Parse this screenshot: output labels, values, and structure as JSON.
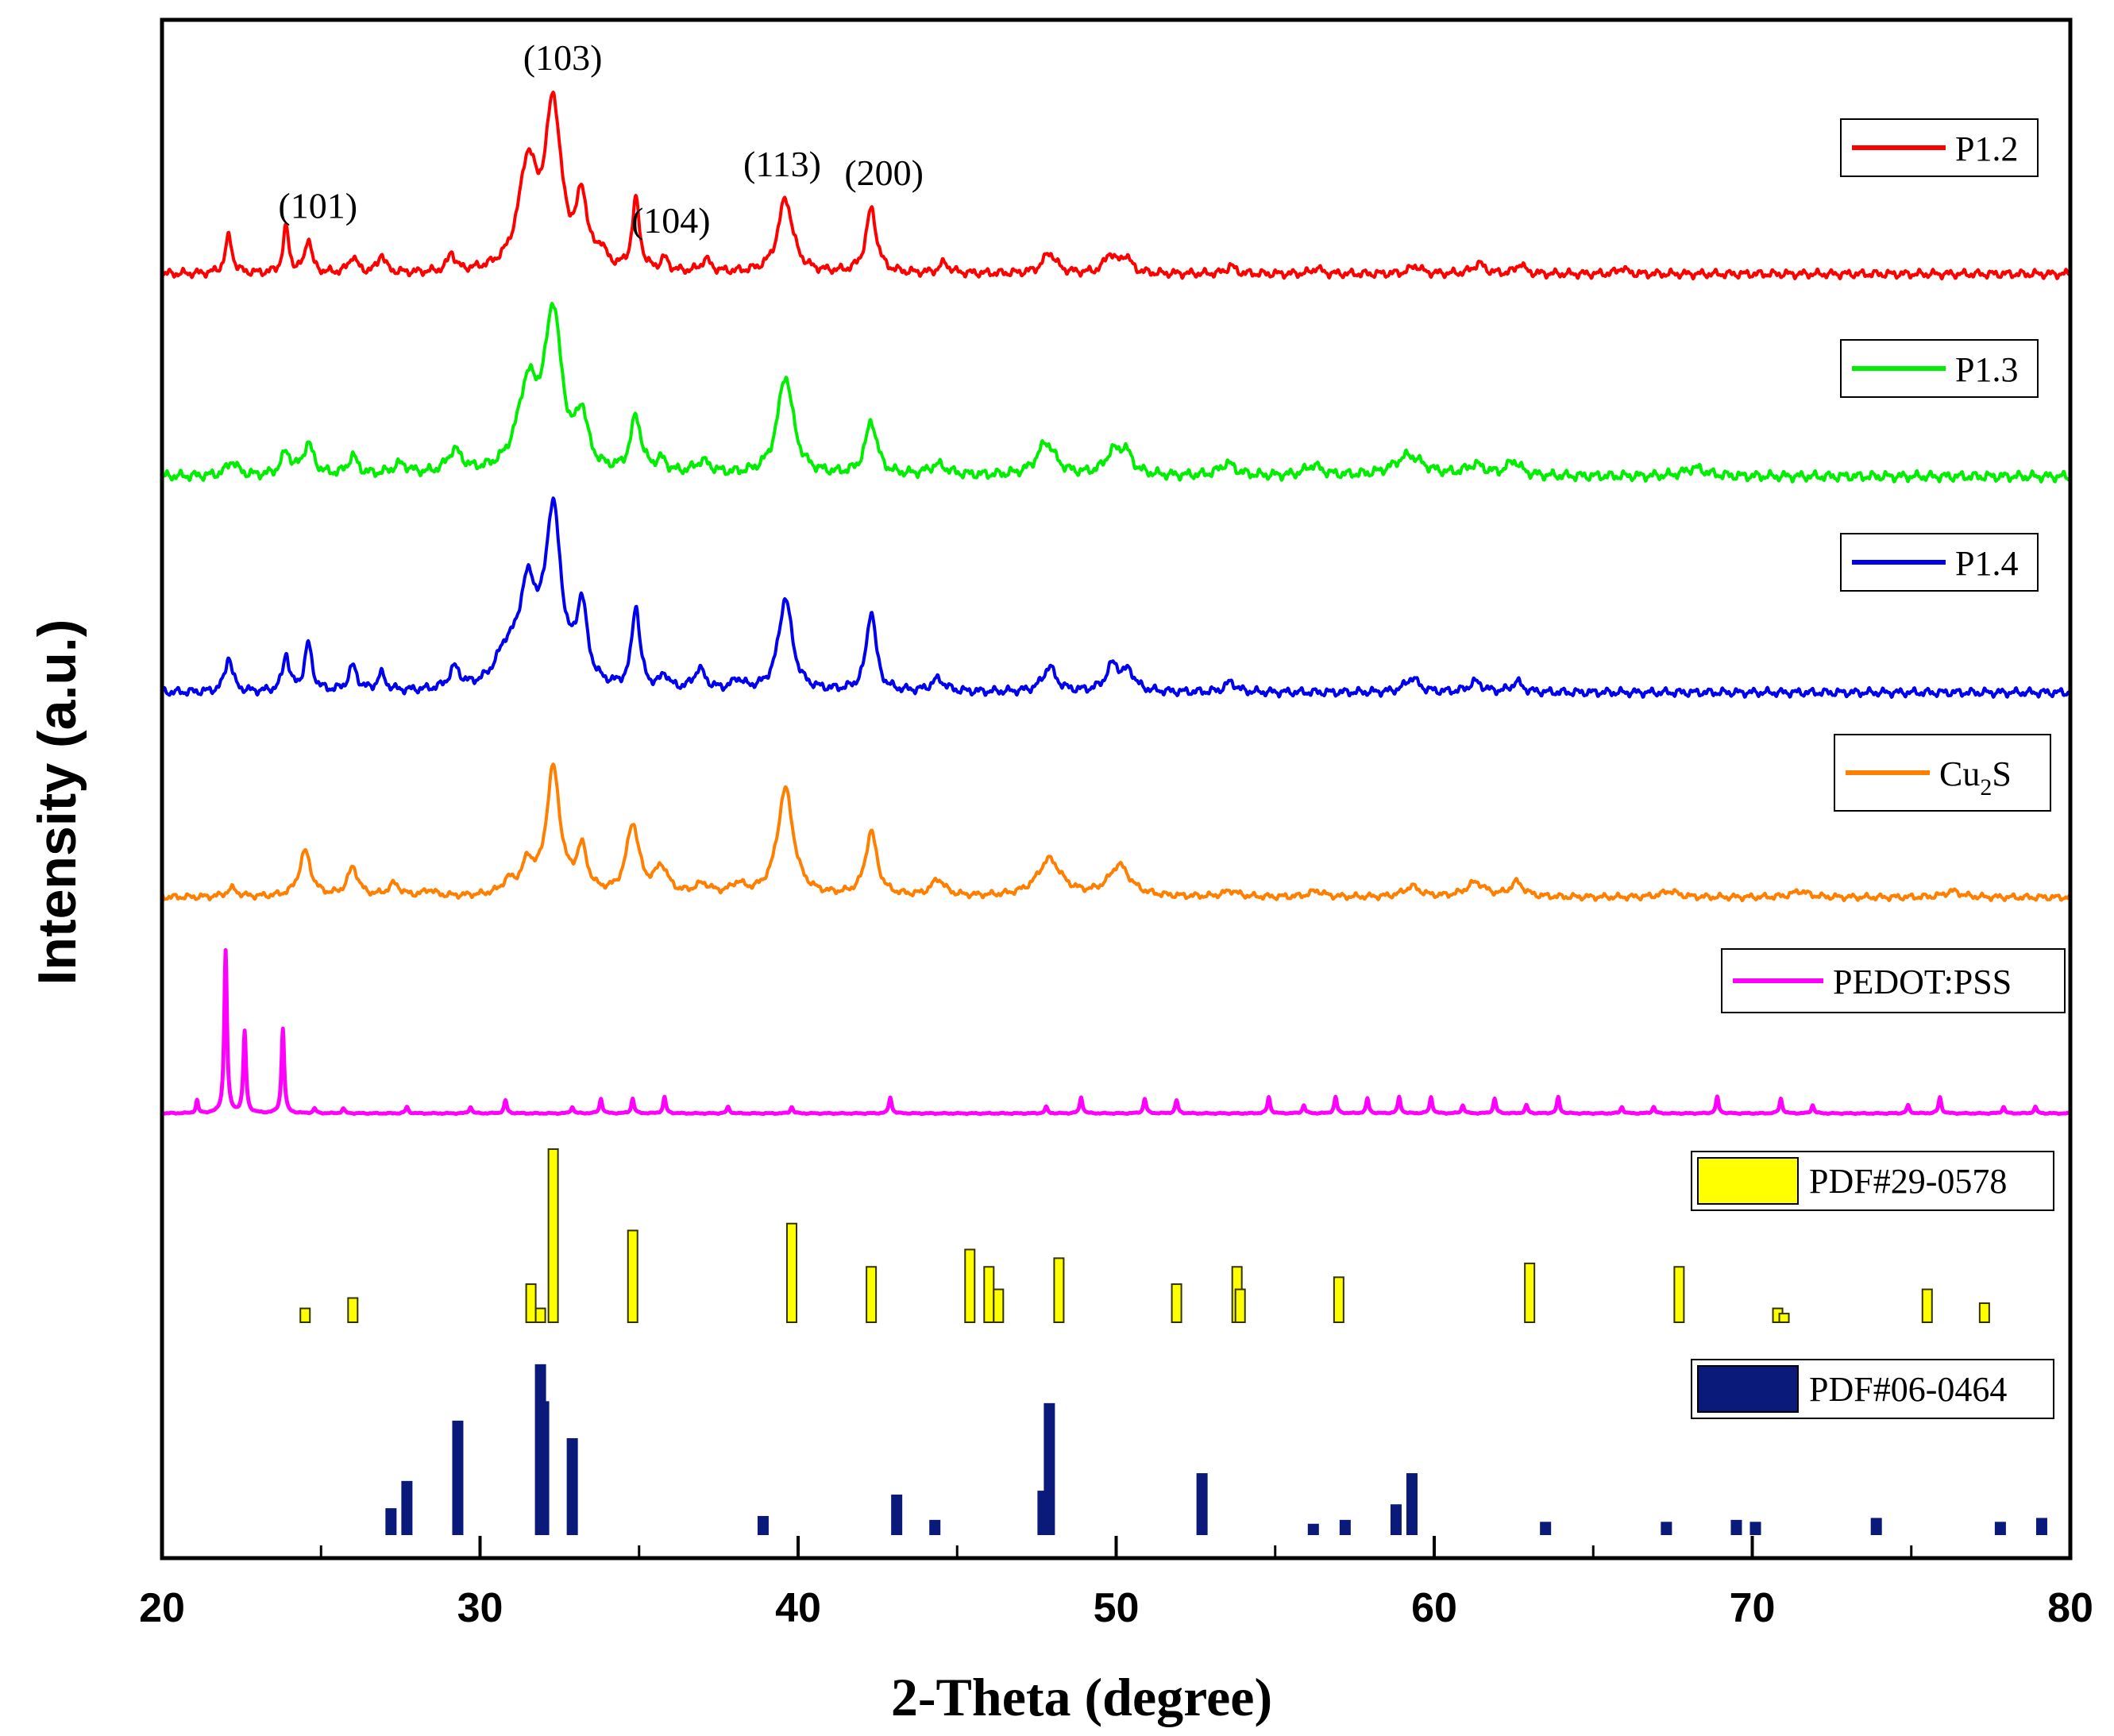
{
  "chart_data": {
    "type": "line",
    "title": "",
    "xlabel": "2-Theta (degree)",
    "ylabel": "Intensity (a.u.)",
    "xlim": [
      20,
      80
    ],
    "xticks": [
      20,
      30,
      40,
      50,
      60,
      70,
      80
    ],
    "grid": false,
    "legend_position": "right, next to each trace",
    "series": [
      {
        "name": "P1.2",
        "color": "#ff0000",
        "baseline": 0.0,
        "noise": 0.012,
        "noise_phase": 1,
        "peaks": [
          [
            22.1,
            0.18,
            0.13
          ],
          [
            23.9,
            0.22,
            0.11
          ],
          [
            24.6,
            0.17,
            0.12
          ],
          [
            26.0,
            0.08,
            0.15
          ],
          [
            26.9,
            0.09,
            0.13
          ],
          [
            29.1,
            0.09,
            0.13
          ],
          [
            31.5,
            0.5,
            0.35
          ],
          [
            32.3,
            0.78,
            0.3
          ],
          [
            33.2,
            0.33,
            0.2
          ],
          [
            33.8,
            0.08,
            0.18
          ],
          [
            34.9,
            0.34,
            0.14
          ],
          [
            35.8,
            0.06,
            0.14
          ],
          [
            37.1,
            0.06,
            0.18
          ],
          [
            39.6,
            0.36,
            0.28
          ],
          [
            42.3,
            0.31,
            0.2
          ],
          [
            44.6,
            0.05,
            0.18
          ],
          [
            47.9,
            0.1,
            0.25
          ],
          [
            49.8,
            0.09,
            0.2
          ],
          [
            50.3,
            0.08,
            0.2
          ],
          [
            53.6,
            0.04,
            0.15
          ],
          [
            56.3,
            0.03,
            0.15
          ],
          [
            59.4,
            0.04,
            0.2
          ],
          [
            61.4,
            0.05,
            0.22
          ],
          [
            62.7,
            0.05,
            0.15
          ],
          [
            65.9,
            0.03,
            0.15
          ]
        ]
      },
      {
        "name": "P1.3",
        "color": "#00ee00",
        "baseline": 0.0,
        "noise": 0.014,
        "noise_phase": 2.3,
        "peaks": [
          [
            22.2,
            0.07,
            0.2
          ],
          [
            23.9,
            0.11,
            0.18
          ],
          [
            24.6,
            0.15,
            0.2
          ],
          [
            26.0,
            0.09,
            0.18
          ],
          [
            27.5,
            0.05,
            0.3
          ],
          [
            29.2,
            0.11,
            0.28
          ],
          [
            31.5,
            0.4,
            0.4
          ],
          [
            32.3,
            0.75,
            0.32
          ],
          [
            33.2,
            0.25,
            0.22
          ],
          [
            34.9,
            0.27,
            0.2
          ],
          [
            35.7,
            0.06,
            0.2
          ],
          [
            37.0,
            0.06,
            0.3
          ],
          [
            39.6,
            0.48,
            0.3
          ],
          [
            42.3,
            0.26,
            0.22
          ],
          [
            44.4,
            0.05,
            0.35
          ],
          [
            47.8,
            0.16,
            0.35
          ],
          [
            49.9,
            0.1,
            0.3
          ],
          [
            50.3,
            0.1,
            0.25
          ],
          [
            53.5,
            0.06,
            0.3
          ],
          [
            56.2,
            0.05,
            0.3
          ],
          [
            59.2,
            0.1,
            0.55
          ],
          [
            61.3,
            0.05,
            0.35
          ],
          [
            62.5,
            0.07,
            0.25
          ],
          [
            68.2,
            0.04,
            0.4
          ]
        ]
      },
      {
        "name": "P1.4",
        "color": "#0000ee",
        "baseline": 0.0,
        "noise": 0.012,
        "noise_phase": 3.7,
        "peaks": [
          [
            22.1,
            0.17,
            0.14
          ],
          [
            23.9,
            0.18,
            0.12
          ],
          [
            24.6,
            0.23,
            0.14
          ],
          [
            26.0,
            0.12,
            0.16
          ],
          [
            26.9,
            0.08,
            0.15
          ],
          [
            29.2,
            0.1,
            0.2
          ],
          [
            30.8,
            0.14,
            0.4
          ],
          [
            31.5,
            0.45,
            0.35
          ],
          [
            32.3,
            0.83,
            0.3
          ],
          [
            33.2,
            0.37,
            0.2
          ],
          [
            34.9,
            0.4,
            0.15
          ],
          [
            35.8,
            0.07,
            0.15
          ],
          [
            36.9,
            0.1,
            0.22
          ],
          [
            38.1,
            0.05,
            0.2
          ],
          [
            39.6,
            0.45,
            0.26
          ],
          [
            42.3,
            0.39,
            0.18
          ],
          [
            44.4,
            0.06,
            0.25
          ],
          [
            47.9,
            0.12,
            0.25
          ],
          [
            49.9,
            0.13,
            0.25
          ],
          [
            50.4,
            0.09,
            0.22
          ],
          [
            53.6,
            0.05,
            0.2
          ],
          [
            59.3,
            0.07,
            0.25
          ],
          [
            61.3,
            0.05,
            0.25
          ],
          [
            62.6,
            0.05,
            0.2
          ]
        ]
      },
      {
        "name": "Cu2S",
        "color": "#ff7f00",
        "baseline": 0.0,
        "noise": 0.009,
        "noise_phase": 5.1,
        "peaks": [
          [
            22.2,
            0.04,
            0.2
          ],
          [
            24.5,
            0.22,
            0.22
          ],
          [
            26.0,
            0.14,
            0.2
          ],
          [
            27.3,
            0.06,
            0.22
          ],
          [
            28.4,
            0.03,
            0.2
          ],
          [
            30.9,
            0.06,
            0.25
          ],
          [
            31.5,
            0.14,
            0.22
          ],
          [
            32.3,
            0.61,
            0.26
          ],
          [
            33.2,
            0.21,
            0.2
          ],
          [
            34.8,
            0.34,
            0.24
          ],
          [
            35.7,
            0.13,
            0.25
          ],
          [
            37.0,
            0.05,
            0.3
          ],
          [
            38.1,
            0.05,
            0.25
          ],
          [
            39.6,
            0.52,
            0.3
          ],
          [
            42.3,
            0.31,
            0.22
          ],
          [
            44.4,
            0.08,
            0.25
          ],
          [
            47.9,
            0.18,
            0.45
          ],
          [
            50.1,
            0.15,
            0.4
          ],
          [
            53.6,
            0.03,
            0.25
          ],
          [
            56.3,
            0.03,
            0.25
          ],
          [
            59.3,
            0.05,
            0.3
          ],
          [
            61.3,
            0.07,
            0.35
          ],
          [
            62.6,
            0.07,
            0.25
          ],
          [
            67.4,
            0.03,
            0.3
          ],
          [
            71.5,
            0.03,
            0.3
          ],
          [
            76.3,
            0.03,
            0.3
          ]
        ]
      },
      {
        "name": "PEDOT:PSS",
        "color": "#ff00ff",
        "baseline": 0.0,
        "noise": 0.002,
        "noise_phase": 6.4,
        "peaks": [
          [
            21.1,
            0.08,
            0.04
          ],
          [
            22.0,
            1.0,
            0.05
          ],
          [
            22.6,
            0.5,
            0.05
          ],
          [
            23.8,
            0.52,
            0.05
          ],
          [
            24.8,
            0.03,
            0.05
          ],
          [
            25.7,
            0.03,
            0.05
          ],
          [
            27.7,
            0.04,
            0.05
          ],
          [
            29.7,
            0.04,
            0.05
          ],
          [
            30.8,
            0.08,
            0.05
          ],
          [
            32.9,
            0.04,
            0.05
          ],
          [
            33.8,
            0.09,
            0.05
          ],
          [
            34.8,
            0.09,
            0.05
          ],
          [
            35.8,
            0.1,
            0.05
          ],
          [
            37.8,
            0.04,
            0.05
          ],
          [
            39.8,
            0.04,
            0.05
          ],
          [
            42.9,
            0.1,
            0.05
          ],
          [
            47.8,
            0.04,
            0.05
          ],
          [
            48.9,
            0.1,
            0.05
          ],
          [
            50.9,
            0.09,
            0.05
          ],
          [
            51.9,
            0.08,
            0.05
          ],
          [
            54.8,
            0.1,
            0.05
          ],
          [
            55.9,
            0.05,
            0.05
          ],
          [
            56.9,
            0.1,
            0.05
          ],
          [
            57.9,
            0.09,
            0.05
          ],
          [
            58.9,
            0.1,
            0.05
          ],
          [
            59.9,
            0.1,
            0.05
          ],
          [
            60.9,
            0.05,
            0.05
          ],
          [
            61.9,
            0.09,
            0.05
          ],
          [
            62.9,
            0.05,
            0.05
          ],
          [
            63.9,
            0.1,
            0.05
          ],
          [
            65.9,
            0.04,
            0.05
          ],
          [
            66.9,
            0.04,
            0.05
          ],
          [
            68.9,
            0.1,
            0.05
          ],
          [
            70.9,
            0.09,
            0.05
          ],
          [
            71.9,
            0.05,
            0.05
          ],
          [
            74.9,
            0.05,
            0.05
          ],
          [
            75.9,
            0.1,
            0.05
          ],
          [
            77.9,
            0.04,
            0.05
          ],
          [
            78.9,
            0.04,
            0.05
          ]
        ]
      }
    ],
    "reference_patterns": [
      {
        "name": "PDF#29-0578",
        "color": "#ffff00",
        "edge": "#333300",
        "bars": [
          [
            24.5,
            0.08
          ],
          [
            26.0,
            0.14
          ],
          [
            31.6,
            0.22
          ],
          [
            31.9,
            0.08
          ],
          [
            32.3,
            1.0
          ],
          [
            34.8,
            0.53
          ],
          [
            39.8,
            0.57
          ],
          [
            42.3,
            0.32
          ],
          [
            45.4,
            0.42
          ],
          [
            46.0,
            0.32
          ],
          [
            46.3,
            0.19
          ],
          [
            48.2,
            0.37
          ],
          [
            51.9,
            0.22
          ],
          [
            53.8,
            0.32
          ],
          [
            53.9,
            0.19
          ],
          [
            57.0,
            0.26
          ],
          [
            63.0,
            0.34
          ],
          [
            67.7,
            0.32
          ],
          [
            70.8,
            0.08
          ],
          [
            71.0,
            0.05
          ],
          [
            75.5,
            0.19
          ],
          [
            77.3,
            0.11
          ]
        ]
      },
      {
        "name": "PDF#06-0464",
        "color": "#0a1a7a",
        "edge": "#0a1a7a",
        "bars": [
          [
            27.2,
            0.13
          ],
          [
            27.7,
            0.27
          ],
          [
            29.3,
            0.58
          ],
          [
            31.9,
            0.87
          ],
          [
            32.0,
            0.68
          ],
          [
            32.9,
            0.49
          ],
          [
            38.9,
            0.09
          ],
          [
            43.1,
            0.2
          ],
          [
            44.3,
            0.07
          ],
          [
            47.7,
            0.22
          ],
          [
            47.9,
            0.67
          ],
          [
            52.7,
            0.31
          ],
          [
            56.2,
            0.05
          ],
          [
            57.2,
            0.07
          ],
          [
            58.8,
            0.15
          ],
          [
            59.3,
            0.31
          ],
          [
            63.5,
            0.06
          ],
          [
            67.3,
            0.06
          ],
          [
            69.5,
            0.07
          ],
          [
            70.1,
            0.06
          ],
          [
            73.9,
            0.08
          ],
          [
            77.8,
            0.06
          ],
          [
            79.1,
            0.08
          ]
        ]
      }
    ],
    "annotations": [
      {
        "text": "(101)",
        "x": 24.9,
        "series": "P1.2"
      },
      {
        "text": "(103)",
        "x": 32.6,
        "series": "P1.2"
      },
      {
        "text": "(104)",
        "x": 36.0,
        "series": "P1.2"
      },
      {
        "text": "(113)",
        "x": 39.5,
        "series": "P1.2"
      },
      {
        "text": "(200)",
        "x": 42.7,
        "series": "P1.2"
      }
    ]
  }
}
